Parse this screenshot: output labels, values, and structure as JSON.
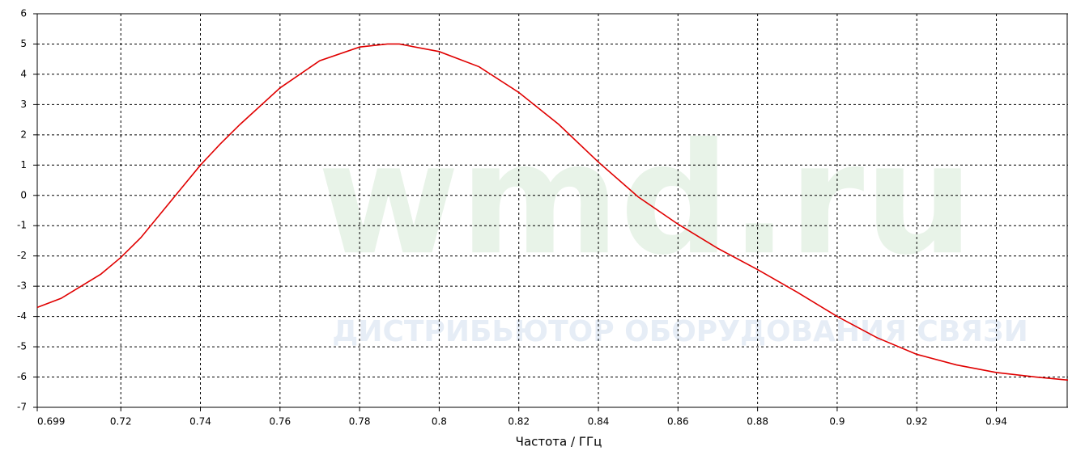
{
  "chart_data": {
    "type": "line",
    "x_label": "Частота / ГГц",
    "watermark": [
      "wmd.ru",
      "ДИСТРИБЬЮТОР ОБОРУДОВАНИЯ СВЯЗИ"
    ],
    "x": [
      0.699,
      0.705,
      0.715,
      0.72,
      0.725,
      0.73,
      0.735,
      0.74,
      0.745,
      0.75,
      0.76,
      0.77,
      0.78,
      0.787,
      0.79,
      0.8,
      0.81,
      0.82,
      0.83,
      0.84,
      0.85,
      0.86,
      0.87,
      0.88,
      0.89,
      0.9,
      0.91,
      0.92,
      0.93,
      0.94,
      0.95,
      0.958
    ],
    "series": [
      {
        "color": "#e00000",
        "values": [
          -3.7,
          -3.4,
          -2.6,
          -2.05,
          -1.4,
          -0.6,
          0.2,
          1.0,
          1.7,
          2.35,
          3.55,
          4.45,
          4.9,
          5.0,
          5.0,
          4.75,
          4.25,
          3.4,
          2.35,
          1.1,
          -0.05,
          -0.95,
          -1.75,
          -2.45,
          -3.2,
          -4.0,
          -4.7,
          -5.25,
          -5.6,
          -5.85,
          -6.0,
          -6.1
        ]
      }
    ],
    "xlim": [
      0.699,
      0.958
    ],
    "xticks": [
      0.699,
      0.72,
      0.74,
      0.76,
      0.78,
      0.8,
      0.82,
      0.84,
      0.86,
      0.88,
      0.9,
      0.92,
      0.94
    ],
    "ylim": [
      -7,
      6
    ],
    "yticks": [
      -7,
      -6,
      -5,
      -4,
      -3,
      -2,
      -1,
      0,
      1,
      2,
      3,
      4,
      5,
      6
    ],
    "grid": true
  }
}
